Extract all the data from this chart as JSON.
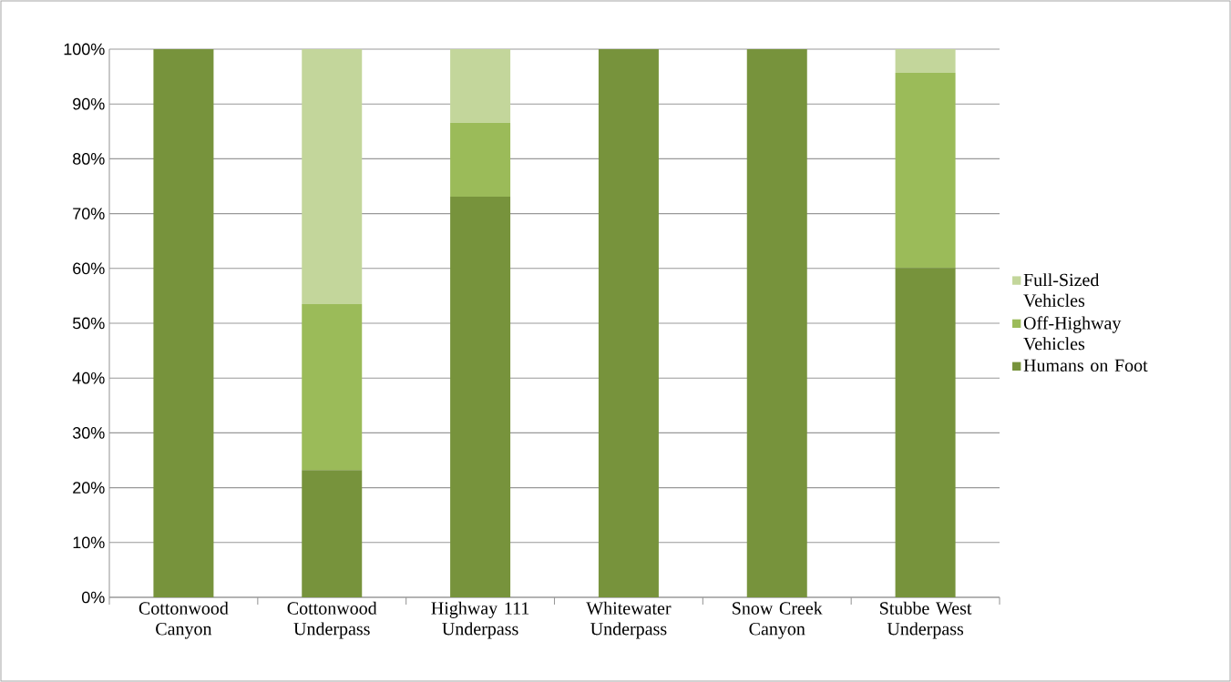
{
  "chart_data": {
    "type": "bar",
    "stacked": true,
    "categories": [
      "Cottonwood Canyon",
      "Cottonwood Underpass",
      "Highway 111 Underpass",
      "Whitewater Underpass",
      "Snow Creek Canyon",
      "Stubbe West Underpass"
    ],
    "series": [
      {
        "name": "Humans on Foot",
        "color": "#77933c",
        "values": [
          100,
          23.2,
          73.1,
          100,
          100,
          60.1
        ]
      },
      {
        "name": "Off-Highway Vehicles",
        "color": "#9bbb59",
        "values": [
          0,
          30.3,
          13.5,
          0,
          0,
          35.6
        ]
      },
      {
        "name": "Full-Sized Vehicles",
        "color": "#c3d69b",
        "values": [
          0,
          46.5,
          13.4,
          0,
          0,
          4.3
        ]
      }
    ],
    "ylim": [
      0,
      100
    ],
    "yticks": [
      {
        "value": 0,
        "label": "0%"
      },
      {
        "value": 10,
        "label": "10%"
      },
      {
        "value": 20,
        "label": "20%"
      },
      {
        "value": 30,
        "label": "30%"
      },
      {
        "value": 40,
        "label": "40%"
      },
      {
        "value": 50,
        "label": "50%"
      },
      {
        "value": 60,
        "label": "60%"
      },
      {
        "value": 70,
        "label": "70%"
      },
      {
        "value": 80,
        "label": "80%"
      },
      {
        "value": 90,
        "label": "90%"
      },
      {
        "value": 100,
        "label": "100%"
      }
    ],
    "grid": "y",
    "legend": "right"
  }
}
